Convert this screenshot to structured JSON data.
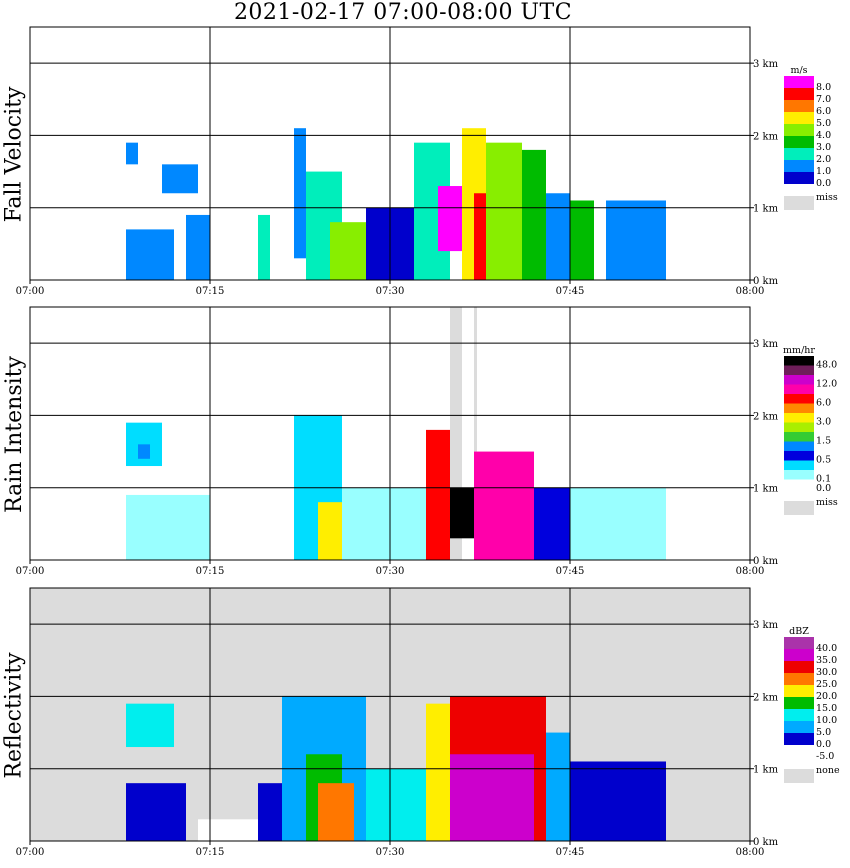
{
  "title": "2021-02-17   07:00-08:00 UTC",
  "x_ticks": [
    "07:00",
    "07:15",
    "07:30",
    "07:45",
    "08:00"
  ],
  "y_ticks": [
    "0 km",
    "1 km",
    "2 km",
    "3 km"
  ],
  "colors": {
    "missing": "#dcdcdc",
    "grid": "#000000"
  },
  "chart_data": [
    {
      "type": "heatmap",
      "ylabel": "Fall Velocity",
      "xlim": [
        "07:00",
        "08:00"
      ],
      "ylim": [
        0,
        3.5
      ],
      "grid": true,
      "background": "white",
      "legend": {
        "unit": "m/s",
        "bins": [
          {
            "label": "8.0",
            "color": "#ff00ff"
          },
          {
            "label": "7.0",
            "color": "#ff0000"
          },
          {
            "label": "6.0",
            "color": "#ff7700"
          },
          {
            "label": "5.0",
            "color": "#ffee00"
          },
          {
            "label": "4.0",
            "color": "#88ee00"
          },
          {
            "label": "3.0",
            "color": "#00bb00"
          },
          {
            "label": "2.0",
            "color": "#00eebb"
          },
          {
            "label": "1.0",
            "color": "#0088ff"
          },
          {
            "label": "0.0",
            "color": "#0000cc"
          }
        ],
        "missing_label": "miss"
      },
      "echoes": [
        {
          "start": "07:08",
          "end": "07:09",
          "bottom": 1.6,
          "top": 1.9,
          "color": "#0088ff"
        },
        {
          "start": "07:08",
          "end": "07:12",
          "bottom": 0.0,
          "top": 0.7,
          "color": "#0088ff"
        },
        {
          "start": "07:11",
          "end": "07:14",
          "bottom": 1.2,
          "top": 1.6,
          "color": "#0088ff"
        },
        {
          "start": "07:13",
          "end": "07:15",
          "bottom": 0.0,
          "top": 0.9,
          "color": "#0088ff"
        },
        {
          "start": "07:19",
          "end": "07:20",
          "bottom": 0.0,
          "top": 0.9,
          "color": "#00eebb"
        },
        {
          "start": "07:22",
          "end": "07:23",
          "bottom": 0.3,
          "top": 2.1,
          "color": "#0088ff"
        },
        {
          "start": "07:23",
          "end": "07:26",
          "bottom": 0.0,
          "top": 1.5,
          "color": "#00eebb"
        },
        {
          "start": "07:25",
          "end": "07:28",
          "bottom": 0.0,
          "top": 0.8,
          "color": "#88ee00"
        },
        {
          "start": "07:28",
          "end": "07:32",
          "bottom": 0.0,
          "top": 1.0,
          "color": "#0000cc"
        },
        {
          "start": "07:32",
          "end": "07:35",
          "bottom": 0.0,
          "top": 1.9,
          "color": "#00eebb"
        },
        {
          "start": "07:34",
          "end": "07:36",
          "bottom": 0.4,
          "top": 1.3,
          "color": "#ff00ff"
        },
        {
          "start": "07:36",
          "end": "07:38",
          "bottom": 0.0,
          "top": 2.1,
          "color": "#ffee00"
        },
        {
          "start": "07:37",
          "end": "07:38",
          "bottom": 0.0,
          "top": 1.2,
          "color": "#ff0000"
        },
        {
          "start": "07:38",
          "end": "07:41",
          "bottom": 0.0,
          "top": 1.9,
          "color": "#88ee00"
        },
        {
          "start": "07:41",
          "end": "07:43",
          "bottom": 0.0,
          "top": 1.8,
          "color": "#00bb00"
        },
        {
          "start": "07:43",
          "end": "07:45",
          "bottom": 0.0,
          "top": 1.2,
          "color": "#0088ff"
        },
        {
          "start": "07:45",
          "end": "07:47",
          "bottom": 0.0,
          "top": 1.1,
          "color": "#00bb00"
        },
        {
          "start": "07:48",
          "end": "07:53",
          "bottom": 0.0,
          "top": 1.1,
          "color": "#0088ff"
        }
      ]
    },
    {
      "type": "heatmap",
      "ylabel": "Rain Intensity",
      "xlim": [
        "07:00",
        "08:00"
      ],
      "ylim": [
        0,
        3.5
      ],
      "grid": true,
      "background": "white",
      "legend": {
        "unit": "mm/hr",
        "bins": [
          {
            "label": "48.0",
            "color": "#000000"
          },
          {
            "label": "",
            "color": "#6e1e5a"
          },
          {
            "label": "12.0",
            "color": "#cc00cc"
          },
          {
            "label": "",
            "color": "#ff00aa"
          },
          {
            "label": "6.0",
            "color": "#ff0000"
          },
          {
            "label": "",
            "color": "#ff8800"
          },
          {
            "label": "3.0",
            "color": "#ffee00"
          },
          {
            "label": "",
            "color": "#aaee00"
          },
          {
            "label": "1.5",
            "color": "#33cc33"
          },
          {
            "label": "",
            "color": "#0088ff"
          },
          {
            "label": "0.5",
            "color": "#0000dd"
          },
          {
            "label": "",
            "color": "#00ddff"
          },
          {
            "label": "0.1",
            "color": "#99ffff"
          },
          {
            "label": "0.0",
            "color": "#ffffff"
          }
        ],
        "missing_label": "miss"
      },
      "missing_bands": [
        {
          "start": "07:35",
          "end": "07:36"
        },
        {
          "start": "07:37",
          "end": "07:37"
        }
      ],
      "echoes": [
        {
          "start": "07:08",
          "end": "07:11",
          "bottom": 1.3,
          "top": 1.9,
          "color": "#00ddff"
        },
        {
          "start": "07:09",
          "end": "07:10",
          "bottom": 1.4,
          "top": 1.6,
          "color": "#0088ff"
        },
        {
          "start": "07:08",
          "end": "07:15",
          "bottom": 0.0,
          "top": 0.9,
          "color": "#99ffff"
        },
        {
          "start": "07:22",
          "end": "07:26",
          "bottom": 0.0,
          "top": 2.0,
          "color": "#00ddff"
        },
        {
          "start": "07:24",
          "end": "07:26",
          "bottom": 0.0,
          "top": 0.8,
          "color": "#ffee00"
        },
        {
          "start": "07:26",
          "end": "07:33",
          "bottom": 0.0,
          "top": 1.0,
          "color": "#99ffff"
        },
        {
          "start": "07:33",
          "end": "07:35",
          "bottom": 0.0,
          "top": 1.8,
          "color": "#ff0000"
        },
        {
          "start": "07:35",
          "end": "07:37",
          "bottom": 0.3,
          "top": 1.0,
          "color": "#000000"
        },
        {
          "start": "07:37",
          "end": "07:42",
          "bottom": 0.0,
          "top": 1.5,
          "color": "#ff00aa"
        },
        {
          "start": "07:42",
          "end": "07:45",
          "bottom": 0.0,
          "top": 1.0,
          "color": "#0000dd"
        },
        {
          "start": "07:45",
          "end": "07:53",
          "bottom": 0.0,
          "top": 1.0,
          "color": "#99ffff"
        }
      ]
    },
    {
      "type": "heatmap",
      "ylabel": "Reflectivity",
      "xlim": [
        "07:00",
        "08:00"
      ],
      "ylim": [
        0,
        3.5
      ],
      "grid": true,
      "background": "missing",
      "legend": {
        "unit": "dBZ",
        "bins": [
          {
            "label": "40.0",
            "color": "#aa33aa"
          },
          {
            "label": "35.0",
            "color": "#cc00cc"
          },
          {
            "label": "30.0",
            "color": "#ee0000"
          },
          {
            "label": "25.0",
            "color": "#ff7700"
          },
          {
            "label": "20.0",
            "color": "#ffee00"
          },
          {
            "label": "15.0",
            "color": "#00bb00"
          },
          {
            "label": "10.0",
            "color": "#00eeee"
          },
          {
            "label": "5.0",
            "color": "#00aaff"
          },
          {
            "label": "0.0",
            "color": "#0000cc"
          },
          {
            "label": "-5.0",
            "color": "#ffffff"
          }
        ],
        "missing_label": "none"
      },
      "echoes": [
        {
          "start": "07:08",
          "end": "07:13",
          "bottom": 0.0,
          "top": 0.8,
          "color": "#0000cc"
        },
        {
          "start": "07:08",
          "end": "07:12",
          "bottom": 1.3,
          "top": 1.9,
          "color": "#00eeee"
        },
        {
          "start": "07:14",
          "end": "07:21",
          "bottom": 0.0,
          "top": 0.3,
          "color": "#ffffff"
        },
        {
          "start": "07:19",
          "end": "07:21",
          "bottom": 0.0,
          "top": 0.8,
          "color": "#0000cc"
        },
        {
          "start": "07:21",
          "end": "07:28",
          "bottom": 0.0,
          "top": 2.0,
          "color": "#00aaff"
        },
        {
          "start": "07:23",
          "end": "07:26",
          "bottom": 0.0,
          "top": 1.2,
          "color": "#00bb00"
        },
        {
          "start": "07:24",
          "end": "07:27",
          "bottom": 0.0,
          "top": 0.8,
          "color": "#ff7700"
        },
        {
          "start": "07:28",
          "end": "07:34",
          "bottom": 0.0,
          "top": 1.0,
          "color": "#00eeee"
        },
        {
          "start": "07:33",
          "end": "07:35",
          "bottom": 0.0,
          "top": 1.9,
          "color": "#ffee00"
        },
        {
          "start": "07:35",
          "end": "07:43",
          "bottom": 0.0,
          "top": 2.0,
          "color": "#ee0000"
        },
        {
          "start": "07:35",
          "end": "07:42",
          "bottom": 0.0,
          "top": 1.2,
          "color": "#cc00cc"
        },
        {
          "start": "07:43",
          "end": "07:45",
          "bottom": 0.0,
          "top": 1.5,
          "color": "#00aaff"
        },
        {
          "start": "07:45",
          "end": "07:53",
          "bottom": 0.0,
          "top": 1.1,
          "color": "#0000cc"
        }
      ]
    }
  ]
}
